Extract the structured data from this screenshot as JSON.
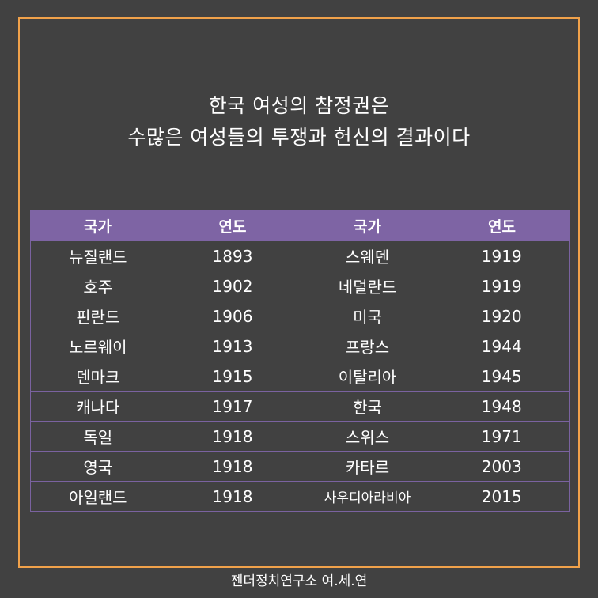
{
  "title": {
    "line1": "한국 여성의 참정권은",
    "line2": "수많은 여성들의 투쟁과 헌신의 결과이다"
  },
  "table": {
    "headers": [
      "국가",
      "연도",
      "국가",
      "연도"
    ],
    "rows": [
      [
        "뉴질랜드",
        "1893",
        "스웨덴",
        "1919"
      ],
      [
        "호주",
        "1902",
        "네덜란드",
        "1919"
      ],
      [
        "핀란드",
        "1906",
        "미국",
        "1920"
      ],
      [
        "노르웨이",
        "1913",
        "프랑스",
        "1944"
      ],
      [
        "덴마크",
        "1915",
        "이탈리아",
        "1945"
      ],
      [
        "캐나다",
        "1917",
        "한국",
        "1948"
      ],
      [
        "독일",
        "1918",
        "스위스",
        "1971"
      ],
      [
        "영국",
        "1918",
        "카타르",
        "2003"
      ],
      [
        "아일랜드",
        "1918",
        "사우디아라비아",
        "2015"
      ]
    ]
  },
  "footer": "젠더정치연구소 여.세.연",
  "colors": {
    "background": "#414141",
    "frame": "#f0a14a",
    "header": "#7e64a4"
  }
}
